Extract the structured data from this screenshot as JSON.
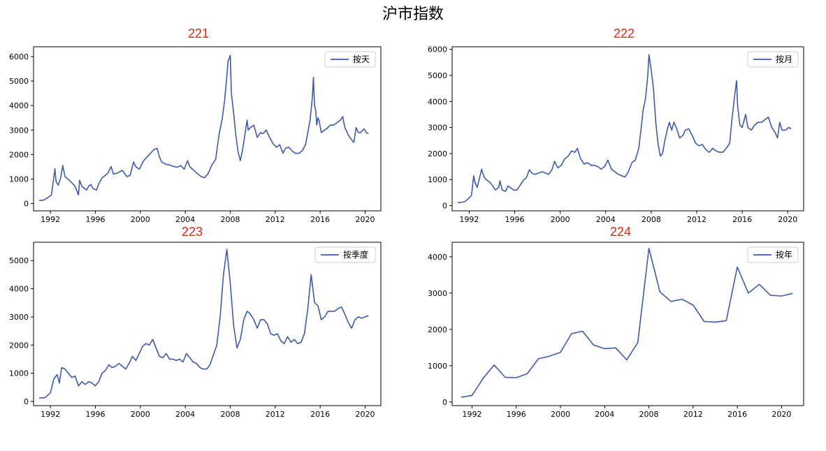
{
  "title": "沪市指数",
  "chart_data": [
    {
      "type": "line",
      "title": "221",
      "legend": {
        "label": "按天",
        "placement": "top-right"
      },
      "line_color": "#3e5aa8",
      "xlim": [
        1990.5,
        2021.4
      ],
      "ylim": [
        -300,
        6400
      ],
      "xticks": [
        1992,
        1996,
        2000,
        2004,
        2008,
        2012,
        2016,
        2020
      ],
      "xtick_labels": [
        "1992",
        "1996",
        "2000",
        "2004",
        "2008",
        "2012",
        "2016",
        "2020"
      ],
      "yticks": [
        0,
        1000,
        2000,
        3000,
        4000,
        5000,
        6000
      ],
      "ytick_labels": [
        "0",
        "1000",
        "2000",
        "3000",
        "4000",
        "5000",
        "6000"
      ],
      "x": [
        1991.0,
        1991.4,
        1991.8,
        1992.1,
        1992.4,
        1992.5,
        1992.7,
        1992.9,
        1993.1,
        1993.3,
        1993.6,
        1993.9,
        1994.2,
        1994.5,
        1994.6,
        1994.8,
        1995.2,
        1995.4,
        1995.6,
        1995.8,
        1996.1,
        1996.3,
        1996.6,
        1996.9,
        1997.1,
        1997.4,
        1997.6,
        1998.0,
        1998.4,
        1998.8,
        1999.1,
        1999.4,
        1999.6,
        1999.9,
        2000.3,
        2000.6,
        2000.9,
        2001.2,
        2001.5,
        2001.7,
        2001.9,
        2002.3,
        2002.6,
        2002.9,
        2003.3,
        2003.6,
        2003.9,
        2004.2,
        2004.4,
        2004.7,
        2005.0,
        2005.4,
        2005.7,
        2006.0,
        2006.4,
        2006.7,
        2007.0,
        2007.3,
        2007.5,
        2007.7,
        2007.8,
        2008.0,
        2008.1,
        2008.3,
        2008.5,
        2008.7,
        2008.9,
        2009.1,
        2009.3,
        2009.5,
        2009.6,
        2009.8,
        2010.1,
        2010.4,
        2010.7,
        2010.9,
        2011.2,
        2011.5,
        2011.8,
        2012.1,
        2012.4,
        2012.7,
        2012.9,
        2013.2,
        2013.5,
        2013.8,
        2014.1,
        2014.4,
        2014.7,
        2014.9,
        2015.1,
        2015.3,
        2015.4,
        2015.5,
        2015.6,
        2015.7,
        2015.8,
        2015.9,
        2016.1,
        2016.4,
        2016.7,
        2016.9,
        2017.2,
        2017.5,
        2017.8,
        2018.0,
        2018.2,
        2018.5,
        2018.8,
        2019.0,
        2019.2,
        2019.4,
        2019.6,
        2019.9,
        2020.1,
        2020.3
      ],
      "values": [
        125,
        135,
        250,
        350,
        1420,
        900,
        750,
        1020,
        1550,
        1100,
        980,
        850,
        700,
        350,
        950,
        700,
        550,
        700,
        780,
        600,
        550,
        800,
        1050,
        1150,
        1230,
        1510,
        1200,
        1250,
        1350,
        1100,
        1150,
        1700,
        1500,
        1400,
        1750,
        1900,
        2050,
        2200,
        2250,
        1900,
        1700,
        1600,
        1580,
        1520,
        1480,
        1550,
        1400,
        1750,
        1500,
        1380,
        1250,
        1100,
        1050,
        1200,
        1600,
        1800,
        2800,
        3500,
        4200,
        5200,
        5800,
        6050,
        4500,
        3700,
        2800,
        2100,
        1750,
        2200,
        2800,
        3400,
        3000,
        3100,
        3200,
        2700,
        2900,
        2850,
        3000,
        2700,
        2450,
        2300,
        2400,
        2050,
        2250,
        2300,
        2150,
        2050,
        2050,
        2150,
        2400,
        2900,
        3400,
        4300,
        5150,
        4000,
        3800,
        3200,
        3500,
        3400,
        2900,
        3000,
        3100,
        3200,
        3200,
        3300,
        3400,
        3550,
        3100,
        2800,
        2600,
        2500,
        3100,
        2900,
        2900,
        3050,
        2900,
        2850
      ]
    },
    {
      "type": "line",
      "title": "222",
      "legend": {
        "label": "按月",
        "placement": "top-right"
      },
      "line_color": "#3e5aa8",
      "xlim": [
        1990.5,
        2021.4
      ],
      "ylim": [
        -200,
        6100
      ],
      "xticks": [
        1992,
        1996,
        2000,
        2004,
        2008,
        2012,
        2016,
        2020
      ],
      "xtick_labels": [
        "1992",
        "1996",
        "2000",
        "2004",
        "2008",
        "2012",
        "2016",
        "2020"
      ],
      "yticks": [
        0,
        1000,
        2000,
        3000,
        4000,
        5000,
        6000
      ],
      "ytick_labels": [
        "0",
        "1000",
        "2000",
        "3000",
        "4000",
        "5000",
        "6000"
      ],
      "x": [
        1991.0,
        1991.3,
        1991.6,
        1991.9,
        1992.2,
        1992.4,
        1992.5,
        1992.7,
        1992.9,
        1993.1,
        1993.3,
        1993.5,
        1993.8,
        1994.0,
        1994.3,
        1994.6,
        1994.7,
        1994.9,
        1995.2,
        1995.4,
        1995.6,
        1995.9,
        1996.2,
        1996.5,
        1996.8,
        1997.0,
        1997.3,
        1997.5,
        1997.8,
        1998.1,
        1998.4,
        1998.7,
        1999.0,
        1999.3,
        1999.5,
        1999.8,
        2000.1,
        2000.4,
        2000.7,
        2001.0,
        2001.3,
        2001.5,
        2001.8,
        2002.1,
        2002.4,
        2002.7,
        2003.0,
        2003.3,
        2003.6,
        2003.9,
        2004.2,
        2004.5,
        2004.8,
        2005.1,
        2005.4,
        2005.7,
        2006.0,
        2006.3,
        2006.6,
        2006.9,
        2007.1,
        2007.3,
        2007.5,
        2007.7,
        2007.8,
        2008.0,
        2008.2,
        2008.4,
        2008.6,
        2008.8,
        2009.0,
        2009.2,
        2009.4,
        2009.6,
        2009.8,
        2010.0,
        2010.2,
        2010.5,
        2010.8,
        2011.0,
        2011.3,
        2011.6,
        2011.9,
        2012.2,
        2012.5,
        2012.8,
        2013.1,
        2013.4,
        2013.7,
        2014.0,
        2014.3,
        2014.6,
        2014.9,
        2015.1,
        2015.3,
        2015.5,
        2015.6,
        2015.8,
        2016.0,
        2016.3,
        2016.5,
        2016.8,
        2017.1,
        2017.4,
        2017.7,
        2018.0,
        2018.3,
        2018.6,
        2018.9,
        2019.1,
        2019.3,
        2019.5,
        2019.8,
        2020.1,
        2020.3
      ],
      "values": [
        120,
        125,
        150,
        250,
        400,
        1150,
        900,
        700,
        1050,
        1400,
        1100,
        1000,
        900,
        800,
        600,
        700,
        950,
        600,
        550,
        750,
        700,
        600,
        600,
        800,
        1000,
        1050,
        1380,
        1250,
        1200,
        1250,
        1300,
        1250,
        1200,
        1400,
        1700,
        1450,
        1550,
        1800,
        1900,
        2100,
        2050,
        2200,
        1800,
        1600,
        1650,
        1550,
        1550,
        1500,
        1400,
        1500,
        1750,
        1400,
        1300,
        1200,
        1150,
        1100,
        1300,
        1650,
        1750,
        2200,
        2900,
        3700,
        4100,
        5000,
        5800,
        5200,
        4500,
        3200,
        2400,
        1900,
        2000,
        2500,
        2900,
        3200,
        2900,
        3200,
        3000,
        2600,
        2700,
        2900,
        2950,
        2700,
        2400,
        2300,
        2350,
        2150,
        2050,
        2200,
        2100,
        2050,
        2050,
        2200,
        2400,
        3300,
        4100,
        4800,
        3800,
        3100,
        3000,
        3500,
        3000,
        2900,
        3100,
        3200,
        3200,
        3300,
        3400,
        3000,
        2800,
        2600,
        3200,
        2900,
        2900,
        3000,
        2950
      ]
    },
    {
      "type": "line",
      "title": "223",
      "legend": {
        "label": "按季度",
        "placement": "top-right"
      },
      "line_color": "#3e5aa8",
      "xlim": [
        1990.5,
        2021.4
      ],
      "ylim": [
        -150,
        5650
      ],
      "xticks": [
        1992,
        1996,
        2000,
        2004,
        2008,
        2012,
        2016,
        2020
      ],
      "xtick_labels": [
        "1992",
        "1996",
        "2000",
        "2004",
        "2008",
        "2012",
        "2016",
        "2020"
      ],
      "yticks": [
        0,
        1000,
        2000,
        3000,
        4000,
        5000
      ],
      "ytick_labels": [
        "0",
        "1000",
        "2000",
        "3000",
        "4000",
        "5000"
      ],
      "x": [
        1991.0,
        1991.5,
        1992.0,
        1992.3,
        1992.6,
        1992.8,
        1993.0,
        1993.3,
        1993.6,
        1993.9,
        1994.2,
        1994.5,
        1994.8,
        1995.1,
        1995.4,
        1995.7,
        1996.0,
        1996.3,
        1996.6,
        1996.9,
        1997.2,
        1997.5,
        1997.8,
        1998.1,
        1998.4,
        1998.7,
        1999.0,
        1999.3,
        1999.6,
        1999.9,
        2000.2,
        2000.5,
        2000.8,
        2001.1,
        2001.4,
        2001.7,
        2002.0,
        2002.3,
        2002.6,
        2002.9,
        2003.2,
        2003.5,
        2003.8,
        2004.1,
        2004.4,
        2004.7,
        2005.0,
        2005.3,
        2005.6,
        2005.9,
        2006.2,
        2006.5,
        2006.8,
        2007.1,
        2007.4,
        2007.7,
        2008.0,
        2008.3,
        2008.6,
        2008.9,
        2009.2,
        2009.5,
        2009.8,
        2010.1,
        2010.4,
        2010.7,
        2011.0,
        2011.3,
        2011.6,
        2011.9,
        2012.2,
        2012.5,
        2012.8,
        2013.1,
        2013.4,
        2013.7,
        2014.0,
        2014.3,
        2014.6,
        2014.9,
        2015.2,
        2015.5,
        2015.8,
        2016.1,
        2016.4,
        2016.7,
        2017.0,
        2017.3,
        2017.6,
        2017.9,
        2018.2,
        2018.5,
        2018.8,
        2019.1,
        2019.4,
        2019.7,
        2020.0,
        2020.3
      ],
      "values": [
        120,
        130,
        300,
        800,
        950,
        650,
        1200,
        1150,
        1000,
        850,
        900,
        550,
        700,
        600,
        700,
        650,
        550,
        700,
        1000,
        1100,
        1300,
        1200,
        1250,
        1350,
        1250,
        1150,
        1350,
        1600,
        1450,
        1700,
        1950,
        2050,
        2000,
        2200,
        1900,
        1600,
        1550,
        1700,
        1500,
        1500,
        1450,
        1500,
        1400,
        1700,
        1550,
        1400,
        1350,
        1200,
        1150,
        1150,
        1300,
        1650,
        2000,
        3000,
        4500,
        5400,
        4200,
        2700,
        1900,
        2200,
        2900,
        3200,
        3100,
        2900,
        2600,
        2900,
        2900,
        2750,
        2400,
        2350,
        2400,
        2150,
        2050,
        2300,
        2100,
        2200,
        2050,
        2100,
        2400,
        3300,
        4500,
        3500,
        3400,
        2900,
        3000,
        3200,
        3200,
        3200,
        3300,
        3350,
        3100,
        2800,
        2600,
        2900,
        3000,
        2950,
        3000,
        3050
      ]
    },
    {
      "type": "line",
      "title": "224",
      "legend": {
        "label": "按年",
        "placement": "top-right"
      },
      "line_color": "#3e5aa8",
      "xlim": [
        1990.2,
        2022.0
      ],
      "ylim": [
        -100,
        4400
      ],
      "xticks": [
        1992,
        1996,
        2000,
        2004,
        2008,
        2012,
        2016,
        2020
      ],
      "xtick_labels": [
        "1992",
        "1996",
        "2000",
        "2004",
        "2008",
        "2012",
        "2016",
        "2020"
      ],
      "yticks": [
        0,
        1000,
        2000,
        3000,
        4000
      ],
      "ytick_labels": [
        "0",
        "1000",
        "2000",
        "3000",
        "4000"
      ],
      "x": [
        1991,
        1992,
        1993,
        1994,
        1995,
        1996,
        1997,
        1998,
        1999,
        2000,
        2001,
        2002,
        2003,
        2004,
        2005,
        2006,
        2007,
        2008,
        2009,
        2010,
        2011,
        2012,
        2013,
        2014,
        2015,
        2016,
        2017,
        2018,
        2019,
        2020,
        2021
      ],
      "values": [
        130,
        180,
        650,
        1020,
        680,
        670,
        780,
        1190,
        1260,
        1370,
        1880,
        1950,
        1570,
        1470,
        1490,
        1160,
        1640,
        4230,
        3030,
        2770,
        2830,
        2670,
        2220,
        2200,
        2240,
        3720,
        3000,
        3240,
        2940,
        2920,
        2990
      ]
    }
  ]
}
